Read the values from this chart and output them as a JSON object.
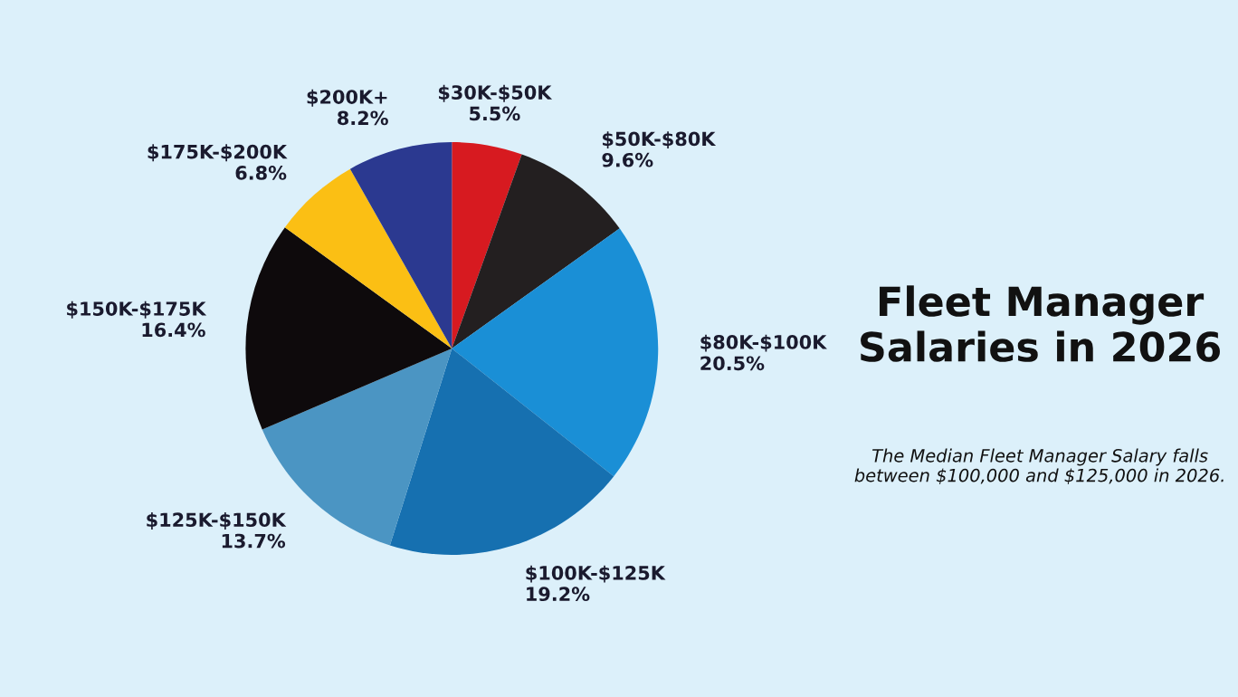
{
  "chart_data": {
    "type": "pie",
    "title": "Fleet Manager Salaries in 2026",
    "annotations": [
      "The Median Fleet Manager Salary falls between $100,000 and $125,000 in 2026."
    ],
    "categories": [
      "$30K-$50K",
      "$50K-$80K",
      "$80K-$100K",
      "$100K-$125K",
      "$125K-$150K",
      "$150K-$175K",
      "$175K-$200K",
      "$200K+"
    ],
    "values": [
      5.5,
      9.6,
      20.5,
      19.2,
      13.7,
      16.4,
      6.8,
      8.2
    ],
    "value_labels": [
      "5.5%",
      "9.6%",
      "20.5%",
      "19.2%",
      "13.7%",
      "16.4%",
      "6.8%",
      "8.2%"
    ],
    "colors": [
      "#d71a20",
      "#231f20",
      "#1a8fd6",
      "#1670b0",
      "#4b95c3",
      "#0e0a0c",
      "#fbbf14",
      "#2b3990"
    ]
  }
}
